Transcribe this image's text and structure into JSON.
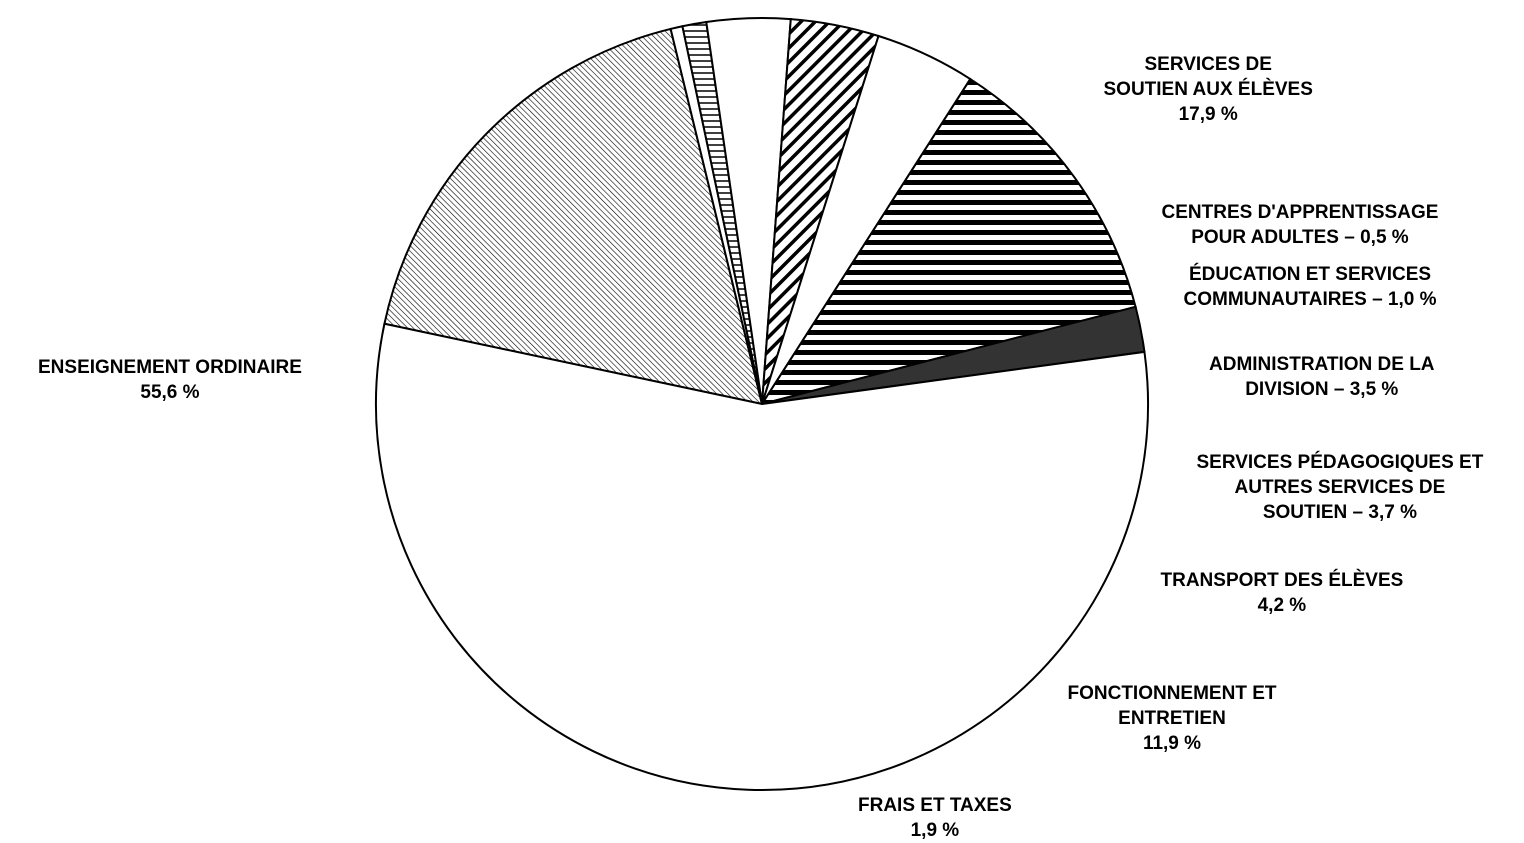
{
  "chart_data": {
    "type": "pie",
    "slices": [
      {
        "lines": [
          "SERVICES DE",
          "SOUTIEN AUX ÉLÈVES",
          "17,9 %"
        ],
        "value": 17.9,
        "pattern": "fine-diagonal"
      },
      {
        "lines": [
          "CENTRES D'APPRENTISSAGE",
          "POUR ADULTES – 0,5 %"
        ],
        "value": 0.5,
        "pattern": "white"
      },
      {
        "lines": [
          "ÉDUCATION ET SERVICES",
          "COMMUNAUTAIRES – 1,0 %"
        ],
        "value": 1.0,
        "pattern": "horizontal-thin"
      },
      {
        "lines": [
          "ADMINISTRATION DE LA",
          "DIVISION – 3,5 %"
        ],
        "value": 3.5,
        "pattern": "white"
      },
      {
        "lines": [
          "SERVICES PÉDAGOGIQUES ET",
          "AUTRES SERVICES DE",
          "SOUTIEN – 3,7 %"
        ],
        "value": 3.7,
        "pattern": "bold-diagonal"
      },
      {
        "lines": [
          "TRANSPORT DES ÉLÈVES",
          "4,2 %"
        ],
        "value": 4.2,
        "pattern": "white"
      },
      {
        "lines": [
          "FONCTIONNEMENT ET",
          "ENTRETIEN",
          "11,9 %"
        ],
        "value": 11.9,
        "pattern": "horizontal-bold"
      },
      {
        "lines": [
          "FRAIS ET TAXES",
          "1,9 %"
        ],
        "value": 1.9,
        "pattern": "dark"
      },
      {
        "lines": [
          "ENSEIGNEMENT ORDINAIRE",
          "55,6 %"
        ],
        "value": 55.6,
        "pattern": "white"
      }
    ],
    "colors": {
      "stroke": "#000000",
      "fill": "#ffffff",
      "dark": "#333333"
    }
  }
}
